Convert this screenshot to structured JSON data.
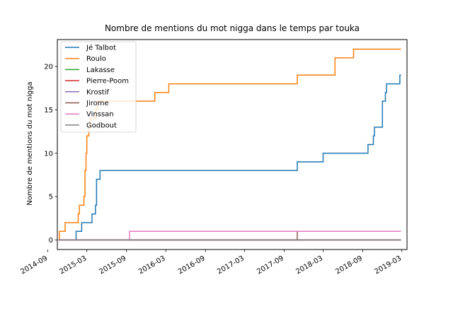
{
  "chart_data": {
    "type": "line",
    "title": "Nombre de mentions du mot nigga dans le temps par touka",
    "xlabel": "",
    "ylabel": "Nombre de mentions du mot nigga",
    "xlim": [
      "2014-10-15",
      "2019-03-25"
    ],
    "ylim": [
      -1.1,
      23.1
    ],
    "x_ticks": [
      "2014-09",
      "2015-03",
      "2015-09",
      "2016-03",
      "2016-09",
      "2017-03",
      "2017-09",
      "2018-03",
      "2018-09",
      "2019-03"
    ],
    "y_ticks": [
      0,
      5,
      10,
      15,
      20
    ],
    "grid": false,
    "legend_position": "top-left",
    "step": true,
    "series": [
      {
        "name": "Jé Talbot",
        "color": "#1f77b4",
        "points": [
          [
            "2014-10-20",
            0
          ],
          [
            "2015-01-10",
            1
          ],
          [
            "2015-02-05",
            2
          ],
          [
            "2015-03-25",
            3
          ],
          [
            "2015-04-10",
            4
          ],
          [
            "2015-04-15",
            7
          ],
          [
            "2015-05-01",
            8
          ],
          [
            "2017-11-01",
            9
          ],
          [
            "2018-03-01",
            10
          ],
          [
            "2018-09-25",
            11
          ],
          [
            "2018-10-20",
            12
          ],
          [
            "2018-10-25",
            13
          ],
          [
            "2018-12-01",
            16
          ],
          [
            "2018-12-15",
            17
          ],
          [
            "2018-12-20",
            18
          ],
          [
            "2019-02-20",
            19
          ],
          [
            "2019-02-25",
            19
          ]
        ]
      },
      {
        "name": "Roulo",
        "color": "#ff7f0e",
        "points": [
          [
            "2014-10-20",
            0
          ],
          [
            "2014-10-25",
            1
          ],
          [
            "2014-11-20",
            2
          ],
          [
            "2015-01-20",
            3
          ],
          [
            "2015-01-25",
            4
          ],
          [
            "2015-02-15",
            5
          ],
          [
            "2015-02-20",
            8
          ],
          [
            "2015-02-25",
            10
          ],
          [
            "2015-03-01",
            12
          ],
          [
            "2015-03-10",
            13
          ],
          [
            "2015-03-15",
            14
          ],
          [
            "2015-04-10",
            15
          ],
          [
            "2015-04-20",
            16
          ],
          [
            "2016-01-10",
            17
          ],
          [
            "2016-03-15",
            18
          ],
          [
            "2017-11-01",
            19
          ],
          [
            "2018-04-25",
            21
          ],
          [
            "2018-07-20",
            22
          ],
          [
            "2019-02-25",
            22
          ]
        ]
      },
      {
        "name": "Lakasse",
        "color": "#2ca02c",
        "points": [
          [
            "2014-10-20",
            0
          ],
          [
            "2019-02-25",
            0
          ]
        ]
      },
      {
        "name": "Pierre-Poom",
        "color": "#d62728",
        "points": [
          [
            "2014-10-20",
            0
          ],
          [
            "2019-02-25",
            0
          ]
        ]
      },
      {
        "name": "Krostif",
        "color": "#9467bd",
        "points": [
          [
            "2014-10-20",
            0
          ],
          [
            "2019-02-25",
            0
          ]
        ]
      },
      {
        "name": "Jirome",
        "color": "#8c564b",
        "points": [
          [
            "2014-10-20",
            0
          ],
          [
            "2017-11-01",
            1
          ],
          [
            "2019-02-25",
            1
          ]
        ]
      },
      {
        "name": "Vinssan",
        "color": "#e377c2",
        "points": [
          [
            "2014-10-20",
            0
          ],
          [
            "2015-09-15",
            1
          ],
          [
            "2019-02-25",
            1
          ]
        ]
      },
      {
        "name": "Godbout",
        "color": "#7f7f7f",
        "points": [
          [
            "2014-10-20",
            0
          ],
          [
            "2019-02-25",
            0
          ]
        ]
      }
    ]
  }
}
